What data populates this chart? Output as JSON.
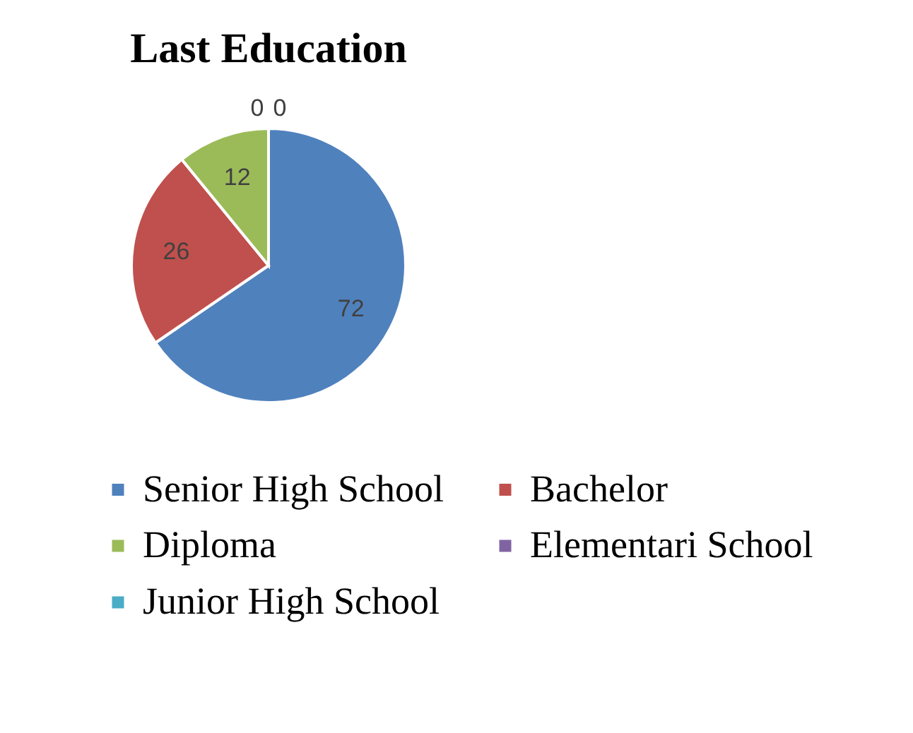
{
  "chart_data": {
    "type": "pie",
    "title": "Last Education",
    "categories": [
      "Senior High School",
      "Bachelor",
      "Diploma",
      "Elementari School",
      "Junior High School"
    ],
    "values": [
      72,
      26,
      12,
      0,
      0
    ],
    "value_labels": [
      "72",
      "26",
      "12",
      "0",
      "0"
    ],
    "colors": [
      "#4f81bd",
      "#c0504d",
      "#9bbb59",
      "#8064a2",
      "#4bacc6"
    ],
    "legend": "bottom"
  }
}
